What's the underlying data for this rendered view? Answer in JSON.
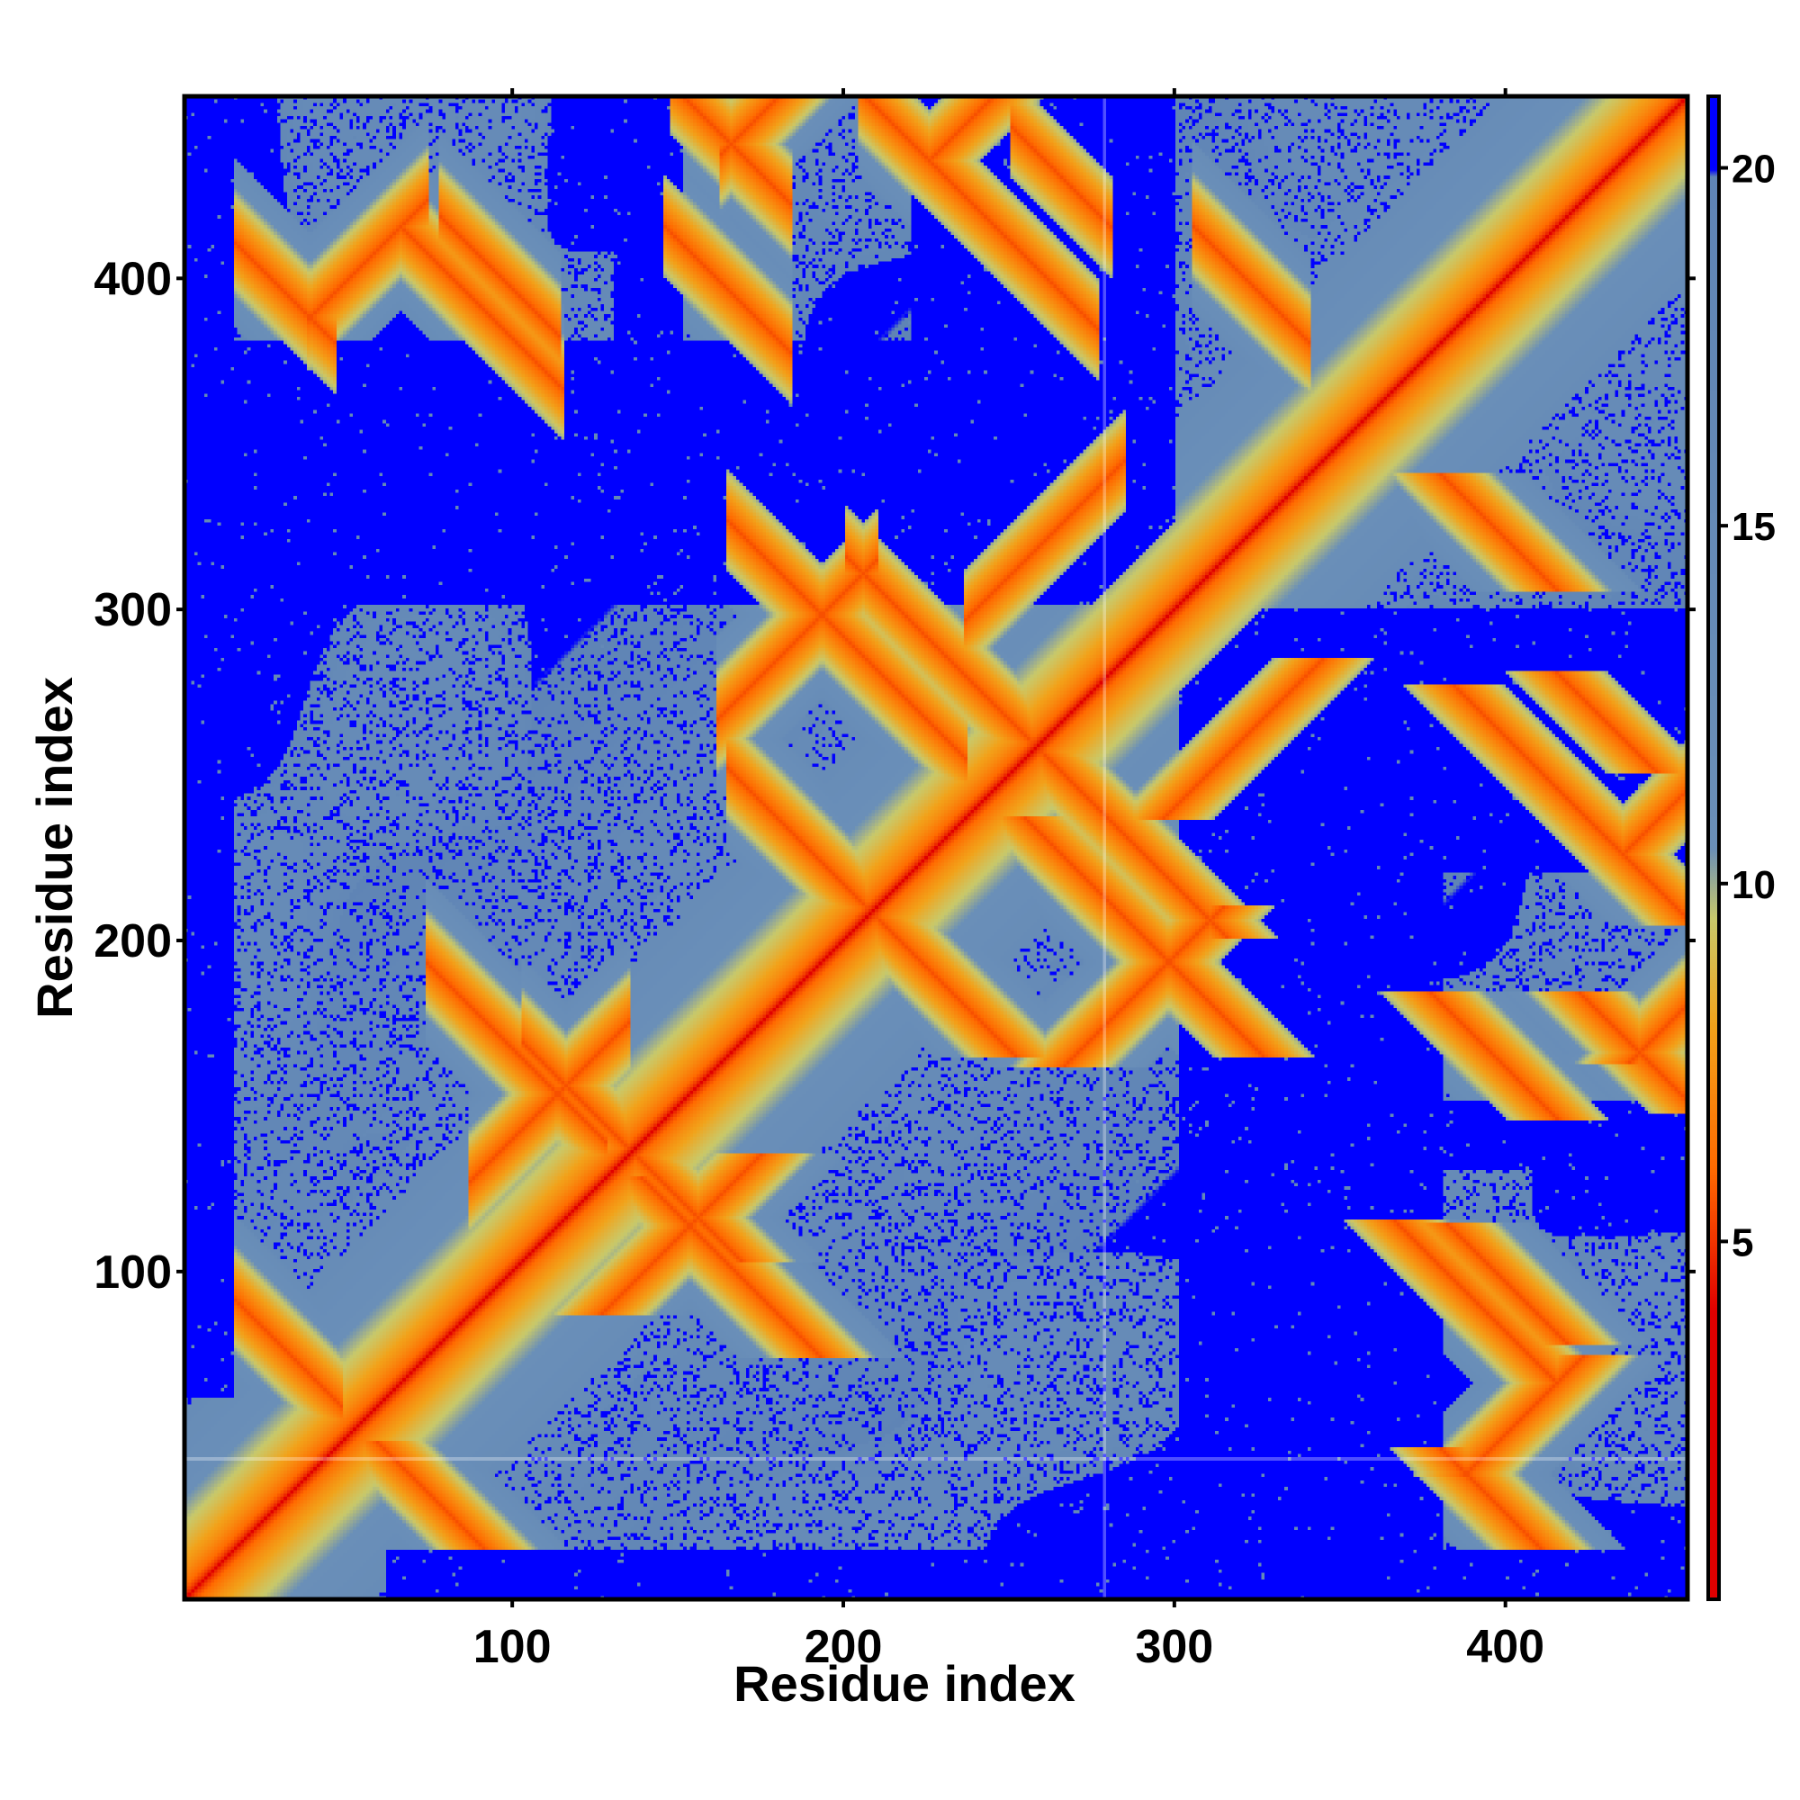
{
  "chart_data": {
    "type": "heatmap",
    "title": "",
    "xlabel": "Residue index",
    "ylabel": "Residue index",
    "xlim": [
      1,
      455
    ],
    "ylim": [
      1,
      455
    ],
    "x_ticks": [
      100,
      200,
      300,
      400
    ],
    "y_ticks": [
      100,
      200,
      300,
      400
    ],
    "x_tick_labels": [
      "100",
      "200",
      "300",
      "400"
    ],
    "y_tick_labels": [
      "100",
      "200",
      "300",
      "400"
    ],
    "value_range": [
      0,
      21
    ],
    "colorbar": {
      "ticks": [
        5,
        10,
        15,
        20
      ],
      "tick_labels": [
        "5",
        "10",
        "15",
        "20"
      ],
      "colors": [
        "#e00000",
        "#ff6a00",
        "#f2a21a",
        "#c9c96a",
        "#6a8fb8",
        "#5f84b5",
        "#0000ff"
      ]
    },
    "symmetric": true,
    "diagonal": "contact distance minimal along residue i = j",
    "features": [
      {
        "i": 20,
        "j": 85,
        "length": 45,
        "orientation": "anti"
      },
      {
        "i": 90,
        "j": 130,
        "length": 40,
        "orientation": "parallel"
      },
      {
        "i": 100,
        "j": 165,
        "length": 45,
        "orientation": "anti"
      },
      {
        "i": 120,
        "j": 150,
        "length": 30,
        "orientation": "anti"
      },
      {
        "i": 165,
        "j": 270,
        "length": 40,
        "orientation": "parallel"
      },
      {
        "i": 185,
        "j": 230,
        "length": 35,
        "orientation": "anti"
      },
      {
        "i": 200,
        "j": 290,
        "length": 60,
        "orientation": "anti"
      },
      {
        "i": 230,
        "j": 285,
        "length": 50,
        "orientation": "anti"
      },
      {
        "i": 240,
        "j": 300,
        "length": 40,
        "orientation": "parallel"
      },
      {
        "i": 30,
        "j": 395,
        "length": 25,
        "orientation": "anti"
      },
      {
        "i": 95,
        "j": 400,
        "length": 30,
        "orientation": "anti"
      },
      {
        "i": 160,
        "j": 400,
        "length": 25,
        "orientation": "anti"
      },
      {
        "i": 165,
        "j": 440,
        "length": 35,
        "orientation": "parallel"
      },
      {
        "i": 230,
        "j": 440,
        "length": 50,
        "orientation": "parallel"
      },
      {
        "i": 265,
        "j": 430,
        "length": 25,
        "orientation": "anti"
      },
      {
        "i": 320,
        "j": 400,
        "length": 25,
        "orientation": "anti"
      },
      {
        "i": 40,
        "j": 390,
        "length": 30,
        "orientation": "parallel"
      },
      {
        "i": 90,
        "j": 390,
        "length": 40,
        "orientation": "anti"
      },
      {
        "i": 165,
        "j": 395,
        "length": 30,
        "orientation": "anti"
      },
      {
        "i": 165,
        "j": 440,
        "length": 30,
        "orientation": "anti"
      },
      {
        "i": 240,
        "j": 420,
        "length": 60,
        "orientation": "anti"
      },
      {
        "i": 325,
        "j": 395,
        "length": 25,
        "orientation": "anti"
      }
    ],
    "reference_lines": {
      "x": 279,
      "y": 43
    }
  }
}
